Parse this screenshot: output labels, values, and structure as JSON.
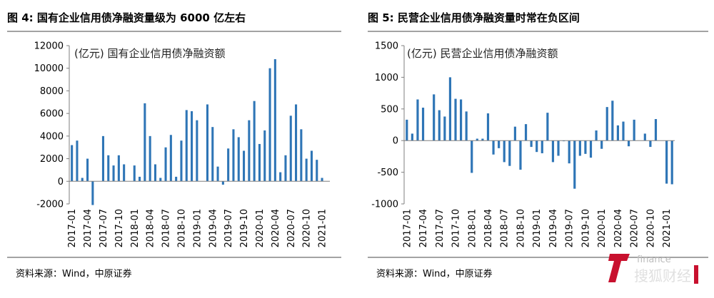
{
  "figures": [
    {
      "title": "图 4:  国有企业信用债净融资量级为 6000 亿左右",
      "source": "资料来源：Wind，中原证券"
    },
    {
      "title": "图 5:  民营企业信用债净融资量时常在负区间",
      "source": "资料来源：Wind，中原证券"
    }
  ],
  "watermark": {
    "text": "搜狐财经",
    "color": "#c8102e"
  },
  "chart_data": [
    {
      "type": "bar",
      "annotation": "(亿元) 国有企业信用债净融资额",
      "color": "#2e75b6",
      "ylim": [
        -2000,
        12000
      ],
      "yticks": [
        "12000",
        "10000",
        "8000",
        "6000",
        "4000",
        "2000",
        "0",
        "-2000"
      ],
      "ytick_values": [
        12000,
        10000,
        8000,
        6000,
        4000,
        2000,
        0,
        -2000
      ],
      "grid": false,
      "legend": "none",
      "categories": [
        "2017-01",
        "2017-02",
        "2017-03",
        "2017-04",
        "2017-05",
        "2017-06",
        "2017-07",
        "2017-08",
        "2017-09",
        "2017-10",
        "2017-11",
        "2017-12",
        "2018-01",
        "2018-02",
        "2018-03",
        "2018-04",
        "2018-05",
        "2018-06",
        "2018-07",
        "2018-08",
        "2018-09",
        "2018-10",
        "2018-11",
        "2018-12",
        "2019-01",
        "2019-02",
        "2019-03",
        "2019-04",
        "2019-05",
        "2019-06",
        "2019-07",
        "2019-08",
        "2019-09",
        "2019-10",
        "2019-11",
        "2019-12",
        "2020-01",
        "2020-02",
        "2020-03",
        "2020-04",
        "2020-05",
        "2020-06",
        "2020-07",
        "2020-08",
        "2020-09",
        "2020-10",
        "2020-11",
        "2020-12",
        "2021-01",
        "2021-02"
      ],
      "xtick_labels": [
        "2017-01",
        "2017-04",
        "2017-07",
        "2017-10",
        "2018-01",
        "2018-04",
        "2018-07",
        "2018-10",
        "2019-01",
        "2019-04",
        "2019-07",
        "2019-10",
        "2020-01",
        "2020-04",
        "2020-07",
        "2020-10",
        "2021-01"
      ],
      "values": [
        3200,
        3600,
        300,
        2000,
        -2100,
        0,
        4000,
        2300,
        1400,
        2300,
        1500,
        0,
        1400,
        400,
        6900,
        4000,
        1500,
        300,
        3000,
        4100,
        400,
        3600,
        6300,
        6200,
        5400,
        0,
        6800,
        4800,
        1300,
        -300,
        2900,
        4600,
        3900,
        2700,
        5400,
        7100,
        3300,
        4500,
        10000,
        10800,
        800,
        2300,
        5800,
        6800,
        4600,
        2000,
        2700,
        1900,
        300,
        0
      ]
    },
    {
      "type": "bar",
      "annotation": "(亿元)  民营企业信用债净融资额",
      "color": "#2e75b6",
      "ylim": [
        -1000,
        1500
      ],
      "yticks": [
        "1500",
        "1000",
        "500",
        "0",
        "-500",
        "-1000"
      ],
      "ytick_values": [
        1500,
        1000,
        500,
        0,
        -500,
        -1000
      ],
      "grid": false,
      "legend": "none",
      "categories": [
        "2017-01",
        "2017-02",
        "2017-03",
        "2017-04",
        "2017-05",
        "2017-06",
        "2017-07",
        "2017-08",
        "2017-09",
        "2017-10",
        "2017-11",
        "2017-12",
        "2018-01",
        "2018-02",
        "2018-03",
        "2018-04",
        "2018-05",
        "2018-06",
        "2018-07",
        "2018-08",
        "2018-09",
        "2018-10",
        "2018-11",
        "2018-12",
        "2019-01",
        "2019-02",
        "2019-03",
        "2019-04",
        "2019-05",
        "2019-06",
        "2019-07",
        "2019-08",
        "2019-09",
        "2019-10",
        "2019-11",
        "2019-12",
        "2020-01",
        "2020-02",
        "2020-03",
        "2020-04",
        "2020-05",
        "2020-06",
        "2020-07",
        "2020-08",
        "2020-09",
        "2020-10",
        "2020-11",
        "2020-12",
        "2021-01",
        "2021-02"
      ],
      "xtick_labels": [
        "2017-01",
        "2017-04",
        "2017-07",
        "2017-10",
        "2018-01",
        "2018-04",
        "2018-07",
        "2018-10",
        "2019-01",
        "2019-04",
        "2019-07",
        "2019-10",
        "2020-01",
        "2020-04",
        "2020-07",
        "2020-10",
        "2021-01"
      ],
      "values": [
        330,
        110,
        650,
        520,
        0,
        730,
        480,
        380,
        1000,
        660,
        650,
        460,
        -510,
        30,
        30,
        430,
        -220,
        -120,
        -340,
        -400,
        220,
        -460,
        260,
        -100,
        -180,
        -200,
        440,
        -340,
        -240,
        -10,
        -360,
        -760,
        -240,
        -210,
        -270,
        160,
        -130,
        530,
        630,
        240,
        300,
        -90,
        330,
        0,
        110,
        -100,
        340,
        0,
        -680,
        -690
      ]
    }
  ]
}
